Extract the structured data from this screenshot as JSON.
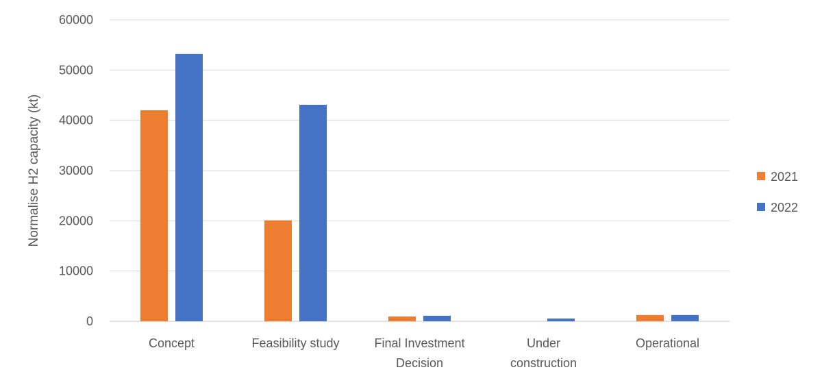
{
  "chart_data": {
    "type": "bar",
    "title": "",
    "xlabel": "",
    "ylabel": "Normalise H2 capacity (kt)",
    "ylim": [
      0,
      60000
    ],
    "yticks": [
      "0",
      "10000",
      "20000",
      "30000",
      "40000",
      "50000",
      "60000"
    ],
    "grid": true,
    "legend_placement": "right",
    "categories": [
      [
        "Concept"
      ],
      [
        "Feasibility study"
      ],
      [
        "Final Investment",
        "Decision"
      ],
      [
        "Under",
        "construction"
      ],
      [
        "Operational"
      ]
    ],
    "series": [
      {
        "name": "2021",
        "color": "#ED7D31",
        "values": [
          42000,
          20100,
          950,
          0,
          1250
        ]
      },
      {
        "name": "2022",
        "color": "#4472C4",
        "values": [
          53200,
          43100,
          1100,
          550,
          1250
        ]
      }
    ]
  }
}
